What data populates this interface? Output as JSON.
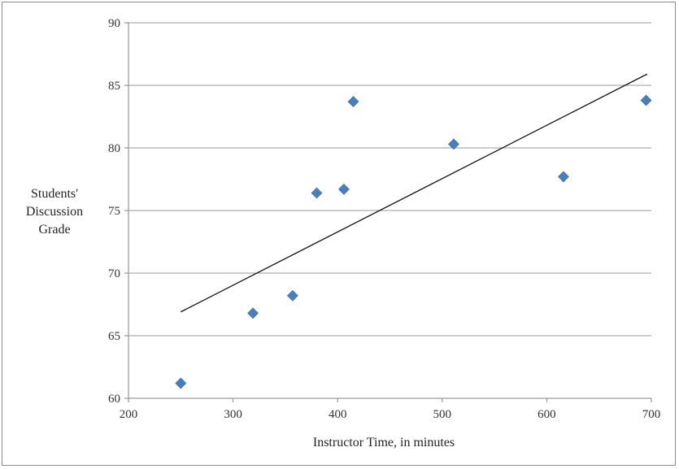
{
  "chart_data": {
    "type": "scatter",
    "title": "",
    "xlabel": "Instructor Time, in minutes",
    "ylabel": [
      "Students'",
      "Discussion",
      "Grade"
    ],
    "xlim": [
      200,
      700
    ],
    "ylim": [
      60,
      90
    ],
    "x_ticks": [
      "200",
      "300",
      "400",
      "500",
      "600",
      "700"
    ],
    "y_ticks": [
      "60",
      "65",
      "70",
      "75",
      "80",
      "85",
      "90"
    ],
    "grid": "horizontal",
    "marker": "diamond",
    "marker_color": "#4a7ebb",
    "trendline_color": "#111111",
    "series": [
      {
        "points": [
          {
            "x": 250,
            "y": 61.2
          },
          {
            "x": 319,
            "y": 66.8
          },
          {
            "x": 357,
            "y": 68.2
          },
          {
            "x": 380,
            "y": 76.4
          },
          {
            "x": 406,
            "y": 76.7
          },
          {
            "x": 415,
            "y": 83.7
          },
          {
            "x": 511,
            "y": 80.3
          },
          {
            "x": 616,
            "y": 77.7
          },
          {
            "x": 695,
            "y": 83.8
          }
        ]
      }
    ],
    "trendline": [
      {
        "x": 250,
        "y": 66.9
      },
      {
        "x": 696,
        "y": 85.9
      }
    ]
  }
}
